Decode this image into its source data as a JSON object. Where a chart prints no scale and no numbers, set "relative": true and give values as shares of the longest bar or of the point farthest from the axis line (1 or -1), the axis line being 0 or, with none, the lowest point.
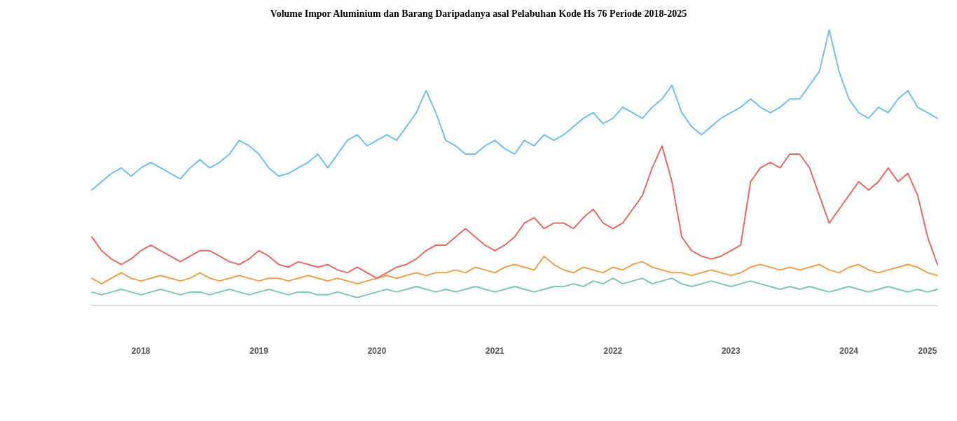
{
  "chart_data": {
    "type": "line",
    "title": "Volume Impor Aluminium dan Barang Daripadanya asal Pelabuhan Kode Hs 76 Periode 2018-2025",
    "relative": true,
    "categories": [
      null,
      null,
      null,
      null,
      null,
      "2018",
      null,
      null,
      null,
      null,
      null,
      null,
      null,
      null,
      null,
      null,
      null,
      "2019",
      null,
      null,
      null,
      null,
      null,
      null,
      null,
      null,
      null,
      null,
      null,
      "2020",
      null,
      null,
      null,
      null,
      null,
      null,
      null,
      null,
      null,
      null,
      null,
      "2021",
      null,
      null,
      null,
      null,
      null,
      null,
      null,
      null,
      null,
      null,
      null,
      "2022",
      null,
      null,
      null,
      null,
      null,
      null,
      null,
      null,
      null,
      null,
      null,
      "2023",
      null,
      null,
      null,
      null,
      null,
      null,
      null,
      null,
      null,
      null,
      null,
      "2024",
      null,
      null,
      null,
      null,
      null,
      null,
      null,
      "2025",
      null
    ],
    "series": [
      {
        "color": "#6ec1ee",
        "values": [
          0.42,
          0.45,
          0.48,
          0.5,
          0.47,
          0.5,
          0.52,
          0.5,
          0.48,
          0.46,
          0.5,
          0.53,
          0.5,
          0.52,
          0.55,
          0.6,
          0.58,
          0.55,
          0.5,
          0.47,
          0.48,
          0.5,
          0.52,
          0.55,
          0.5,
          0.55,
          0.6,
          0.62,
          0.58,
          0.6,
          0.62,
          0.6,
          0.65,
          0.7,
          0.78,
          0.7,
          0.6,
          0.58,
          0.55,
          0.55,
          0.58,
          0.6,
          0.57,
          0.55,
          0.6,
          0.58,
          0.62,
          0.6,
          0.62,
          0.65,
          0.68,
          0.7,
          0.66,
          0.68,
          0.72,
          0.7,
          0.68,
          0.72,
          0.75,
          0.8,
          0.7,
          0.65,
          0.62,
          0.65,
          0.68,
          0.7,
          0.72,
          0.75,
          0.72,
          0.7,
          0.72,
          0.75,
          0.75,
          0.8,
          0.85,
          1,
          0.85,
          0.75,
          0.7,
          0.68,
          0.72,
          0.7,
          0.75,
          0.78,
          0.72,
          0.7,
          0.68
        ]
      },
      {
        "color": "#e86a62",
        "values": [
          0.25,
          0.2,
          0.17,
          0.15,
          0.17,
          0.2,
          0.22,
          0.2,
          0.18,
          0.16,
          0.18,
          0.2,
          0.2,
          0.18,
          0.16,
          0.15,
          0.17,
          0.2,
          0.18,
          0.15,
          0.14,
          0.16,
          0.15,
          0.14,
          0.15,
          0.13,
          0.12,
          0.14,
          0.12,
          0.1,
          0.12,
          0.14,
          0.15,
          0.17,
          0.2,
          0.22,
          0.22,
          0.25,
          0.28,
          0.25,
          0.22,
          0.2,
          0.22,
          0.25,
          0.3,
          0.32,
          0.28,
          0.3,
          0.3,
          0.28,
          0.32,
          0.35,
          0.3,
          0.28,
          0.3,
          0.35,
          0.4,
          0.5,
          0.58,
          0.45,
          0.25,
          0.2,
          0.18,
          0.17,
          0.18,
          0.2,
          0.22,
          0.45,
          0.5,
          0.52,
          0.5,
          0.55,
          0.55,
          0.5,
          0.4,
          0.3,
          0.35,
          0.4,
          0.45,
          0.42,
          0.45,
          0.5,
          0.45,
          0.48,
          0.4,
          0.25,
          0.15
        ]
      },
      {
        "color": "#7cc7b2",
        "values": [
          0.05,
          0.04,
          0.05,
          0.06,
          0.05,
          0.04,
          0.05,
          0.06,
          0.05,
          0.04,
          0.05,
          0.05,
          0.04,
          0.05,
          0.06,
          0.05,
          0.04,
          0.05,
          0.06,
          0.05,
          0.04,
          0.05,
          0.05,
          0.04,
          0.04,
          0.05,
          0.04,
          0.03,
          0.04,
          0.05,
          0.06,
          0.05,
          0.06,
          0.07,
          0.06,
          0.05,
          0.06,
          0.05,
          0.06,
          0.07,
          0.06,
          0.05,
          0.06,
          0.07,
          0.06,
          0.05,
          0.06,
          0.07,
          0.07,
          0.08,
          0.07,
          0.09,
          0.08,
          0.1,
          0.08,
          0.09,
          0.1,
          0.08,
          0.09,
          0.1,
          0.08,
          0.07,
          0.08,
          0.09,
          0.08,
          0.07,
          0.08,
          0.09,
          0.08,
          0.07,
          0.06,
          0.07,
          0.06,
          0.07,
          0.06,
          0.05,
          0.06,
          0.07,
          0.06,
          0.05,
          0.06,
          0.07,
          0.06,
          0.05,
          0.06,
          0.05,
          0.06
        ]
      },
      {
        "color": "#f0a04b",
        "values": [
          0.1,
          0.08,
          0.1,
          0.12,
          0.1,
          0.09,
          0.1,
          0.11,
          0.1,
          0.09,
          0.1,
          0.12,
          0.1,
          0.09,
          0.1,
          0.11,
          0.1,
          0.09,
          0.1,
          0.1,
          0.09,
          0.1,
          0.11,
          0.1,
          0.09,
          0.1,
          0.09,
          0.08,
          0.09,
          0.1,
          0.11,
          0.1,
          0.11,
          0.12,
          0.11,
          0.12,
          0.12,
          0.13,
          0.12,
          0.14,
          0.13,
          0.12,
          0.14,
          0.15,
          0.14,
          0.13,
          0.18,
          0.15,
          0.13,
          0.12,
          0.14,
          0.13,
          0.12,
          0.14,
          0.13,
          0.15,
          0.16,
          0.14,
          0.13,
          0.12,
          0.12,
          0.11,
          0.12,
          0.13,
          0.12,
          0.11,
          0.12,
          0.14,
          0.15,
          0.14,
          0.13,
          0.14,
          0.13,
          0.14,
          0.15,
          0.13,
          0.12,
          0.14,
          0.15,
          0.13,
          0.12,
          0.13,
          0.14,
          0.15,
          0.14,
          0.12,
          0.11
        ]
      }
    ]
  }
}
